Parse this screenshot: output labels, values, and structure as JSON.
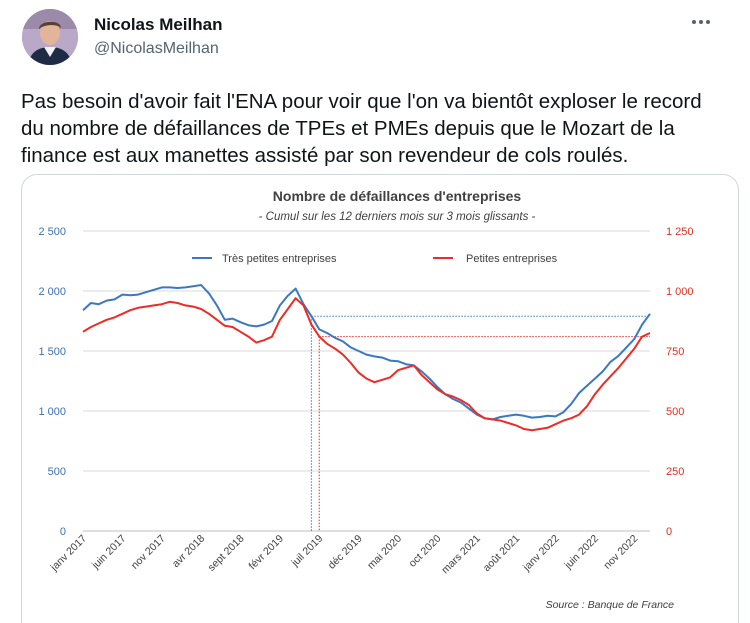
{
  "tweet": {
    "author_name": "Nicolas Meilhan",
    "author_handle": "@NicolasMeilhan",
    "more_icon": "more-icon",
    "text_lines": [
      "Pas besoin d'avoir fait l'ENA pour voir que l'on va bientôt exploser le record",
      "du nombre de défaillances de TPEs et PMEs depuis que le Mozart de la",
      "finance est aux manettes assisté par son revendeur de cols roulés."
    ]
  },
  "chart_data": {
    "type": "line",
    "title": "Nombre de défaillances d'entreprises",
    "subtitle": "- Cumul sur les 12 derniers mois sur 3 mois glissants -",
    "source": "Source : Banque de France",
    "colors": {
      "tpe": "#3b78c2",
      "pe": "#ee2b24",
      "left_axis": "#3b6fb6",
      "right_axis": "#e0301e",
      "grid": "#d9d9d9"
    },
    "y_left": {
      "min": 0,
      "max": 2500,
      "ticks": [
        0,
        500,
        1000,
        1500,
        2000,
        2500
      ],
      "tick_labels": [
        "0",
        "500",
        "1 000",
        "1 500",
        "2 000",
        "2 500"
      ]
    },
    "y_right": {
      "min": 0,
      "max": 1250,
      "ticks": [
        0,
        250,
        500,
        750,
        1000,
        1250
      ],
      "tick_labels": [
        "0",
        "250",
        "500",
        "750",
        "1 000",
        "1 250"
      ]
    },
    "x_tick_labels": [
      "janv 2017",
      "juin 2017",
      "nov 2017",
      "avr 2018",
      "sept 2018",
      "févr 2019",
      "juil 2019",
      "déc 2019",
      "mai 2020",
      "oct 2020",
      "mars 2021",
      "août 2021",
      "janv 2022",
      "juin 2022",
      "nov 2022"
    ],
    "x_tick_months": [
      0,
      5,
      10,
      15,
      20,
      25,
      30,
      35,
      40,
      45,
      50,
      55,
      60,
      65,
      70
    ],
    "x_months_total": 72,
    "series": [
      {
        "name": "Très petites entreprises",
        "axis": "left",
        "values": [
          1840,
          1900,
          1890,
          1920,
          1930,
          1970,
          1965,
          1970,
          1990,
          2010,
          2030,
          2030,
          2025,
          2030,
          2040,
          2050,
          1980,
          1880,
          1760,
          1770,
          1740,
          1715,
          1705,
          1720,
          1750,
          1880,
          1960,
          2020,
          1890,
          1790,
          1680,
          1650,
          1610,
          1580,
          1530,
          1500,
          1470,
          1455,
          1445,
          1420,
          1415,
          1390,
          1380,
          1330,
          1270,
          1200,
          1140,
          1100,
          1070,
          1020,
          970,
          940,
          930,
          950,
          960,
          970,
          960,
          945,
          950,
          960,
          955,
          990,
          1060,
          1150,
          1210,
          1270,
          1330,
          1410,
          1460,
          1530,
          1600,
          1720,
          1810
        ]
      },
      {
        "name": "Petites entreprises",
        "axis": "right",
        "values": [
          830,
          850,
          865,
          880,
          890,
          905,
          920,
          930,
          935,
          940,
          945,
          955,
          950,
          940,
          935,
          925,
          905,
          880,
          855,
          850,
          830,
          810,
          785,
          795,
          810,
          880,
          925,
          970,
          940,
          860,
          810,
          780,
          760,
          735,
          700,
          660,
          635,
          620,
          630,
          640,
          670,
          680,
          690,
          650,
          620,
          590,
          570,
          560,
          545,
          525,
          490,
          470,
          465,
          460,
          450,
          440,
          425,
          420,
          425,
          430,
          445,
          460,
          470,
          485,
          520,
          570,
          610,
          645,
          680,
          720,
          760,
          810,
          825
        ]
      }
    ],
    "legend": [
      "Très petites entreprises",
      "Petites entreprises"
    ],
    "reference_month": 29,
    "reference_month_pe": 30
  }
}
